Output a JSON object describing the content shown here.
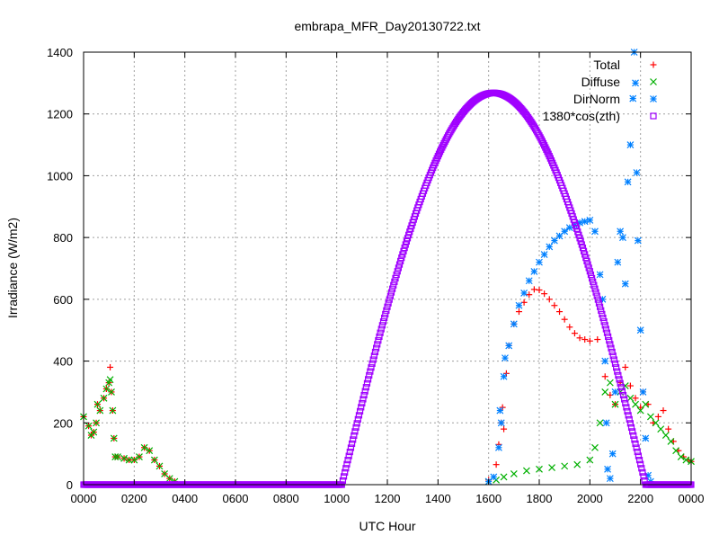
{
  "chart_data": {
    "type": "scatter",
    "title": "embrapa_MFR_Day20130722.txt",
    "xlabel": "UTC Hour",
    "ylabel": "Irradiance (W/m2)",
    "xlim": [
      0,
      24
    ],
    "ylim": [
      0,
      1400
    ],
    "x_ticks": [
      {
        "value": 0,
        "label": "0000"
      },
      {
        "value": 2,
        "label": "0200"
      },
      {
        "value": 4,
        "label": "0400"
      },
      {
        "value": 6,
        "label": "0600"
      },
      {
        "value": 8,
        "label": "0800"
      },
      {
        "value": 10,
        "label": "1000"
      },
      {
        "value": 12,
        "label": "1200"
      },
      {
        "value": 14,
        "label": "1400"
      },
      {
        "value": 16,
        "label": "1600"
      },
      {
        "value": 18,
        "label": "1800"
      },
      {
        "value": 20,
        "label": "2000"
      },
      {
        "value": 22,
        "label": "2200"
      },
      {
        "value": 24,
        "label": "0000"
      }
    ],
    "y_ticks": [
      0,
      200,
      400,
      600,
      800,
      1000,
      1200,
      1400
    ],
    "grid": true,
    "legend_position": "top-right",
    "series": [
      {
        "name": "Total",
        "color": "#ff0000",
        "marker": "plus",
        "points": [
          [
            0.0,
            220
          ],
          [
            0.2,
            190
          ],
          [
            0.3,
            160
          ],
          [
            0.4,
            170
          ],
          [
            0.5,
            200
          ],
          [
            0.55,
            260
          ],
          [
            0.65,
            240
          ],
          [
            0.8,
            280
          ],
          [
            0.9,
            310
          ],
          [
            1.0,
            330
          ],
          [
            1.05,
            380
          ],
          [
            1.1,
            300
          ],
          [
            1.15,
            240
          ],
          [
            1.2,
            150
          ],
          [
            1.25,
            90
          ],
          [
            1.35,
            90
          ],
          [
            1.6,
            85
          ],
          [
            1.8,
            80
          ],
          [
            2.0,
            80
          ],
          [
            2.2,
            90
          ],
          [
            2.4,
            120
          ],
          [
            2.6,
            110
          ],
          [
            2.8,
            80
          ],
          [
            3.0,
            60
          ],
          [
            3.2,
            35
          ],
          [
            3.4,
            20
          ],
          [
            3.6,
            10
          ],
          [
            16.0,
            15
          ],
          [
            16.3,
            65
          ],
          [
            16.4,
            130
          ],
          [
            16.5,
            200
          ],
          [
            16.55,
            250
          ],
          [
            16.6,
            180
          ],
          [
            16.7,
            360
          ],
          [
            16.8,
            450
          ],
          [
            17.0,
            520
          ],
          [
            17.2,
            560
          ],
          [
            17.4,
            590
          ],
          [
            17.6,
            615
          ],
          [
            17.8,
            632
          ],
          [
            18.0,
            630
          ],
          [
            18.2,
            618
          ],
          [
            18.4,
            600
          ],
          [
            18.6,
            580
          ],
          [
            18.8,
            560
          ],
          [
            19.0,
            535
          ],
          [
            19.2,
            510
          ],
          [
            19.4,
            490
          ],
          [
            19.6,
            475
          ],
          [
            19.8,
            470
          ],
          [
            20.0,
            465
          ],
          [
            20.3,
            470
          ],
          [
            20.6,
            350
          ],
          [
            20.8,
            290
          ],
          [
            21.0,
            260
          ],
          [
            21.2,
            330
          ],
          [
            21.4,
            380
          ],
          [
            21.6,
            320
          ],
          [
            21.8,
            280
          ],
          [
            22.0,
            250
          ],
          [
            22.1,
            300
          ],
          [
            22.3,
            260
          ],
          [
            22.5,
            200
          ],
          [
            22.7,
            220
          ],
          [
            22.9,
            240
          ],
          [
            23.1,
            180
          ],
          [
            23.3,
            140
          ],
          [
            23.5,
            110
          ],
          [
            23.7,
            90
          ],
          [
            23.9,
            80
          ],
          [
            24.0,
            75
          ]
        ]
      },
      {
        "name": "Diffuse",
        "color": "#00b000",
        "marker": "cross",
        "points": [
          [
            0.0,
            220
          ],
          [
            0.2,
            190
          ],
          [
            0.3,
            160
          ],
          [
            0.4,
            170
          ],
          [
            0.5,
            200
          ],
          [
            0.55,
            260
          ],
          [
            0.65,
            240
          ],
          [
            0.8,
            280
          ],
          [
            0.9,
            310
          ],
          [
            1.0,
            330
          ],
          [
            1.05,
            340
          ],
          [
            1.1,
            300
          ],
          [
            1.15,
            240
          ],
          [
            1.2,
            150
          ],
          [
            1.25,
            90
          ],
          [
            1.35,
            90
          ],
          [
            1.6,
            85
          ],
          [
            1.8,
            80
          ],
          [
            2.0,
            80
          ],
          [
            2.2,
            90
          ],
          [
            2.4,
            120
          ],
          [
            2.6,
            110
          ],
          [
            2.8,
            80
          ],
          [
            3.0,
            60
          ],
          [
            3.2,
            35
          ],
          [
            3.4,
            20
          ],
          [
            3.6,
            10
          ],
          [
            16.0,
            10
          ],
          [
            16.3,
            15
          ],
          [
            16.6,
            25
          ],
          [
            17.0,
            35
          ],
          [
            17.5,
            45
          ],
          [
            18.0,
            50
          ],
          [
            18.5,
            55
          ],
          [
            19.0,
            60
          ],
          [
            19.5,
            65
          ],
          [
            20.0,
            80
          ],
          [
            20.2,
            120
          ],
          [
            20.4,
            200
          ],
          [
            20.6,
            300
          ],
          [
            20.8,
            330
          ],
          [
            21.0,
            260
          ],
          [
            21.2,
            300
          ],
          [
            21.4,
            320
          ],
          [
            21.6,
            280
          ],
          [
            21.8,
            260
          ],
          [
            22.0,
            240
          ],
          [
            22.2,
            260
          ],
          [
            22.4,
            220
          ],
          [
            22.6,
            200
          ],
          [
            22.8,
            180
          ],
          [
            23.0,
            160
          ],
          [
            23.2,
            140
          ],
          [
            23.4,
            110
          ],
          [
            23.6,
            90
          ],
          [
            23.8,
            80
          ],
          [
            24.0,
            75
          ]
        ]
      },
      {
        "name": "DirNorm",
        "color": "#0080ff",
        "marker": "star",
        "points": [
          [
            16.0,
            10
          ],
          [
            16.2,
            25
          ],
          [
            16.4,
            120
          ],
          [
            16.45,
            240
          ],
          [
            16.5,
            200
          ],
          [
            16.6,
            350
          ],
          [
            16.65,
            410
          ],
          [
            16.8,
            450
          ],
          [
            17.0,
            520
          ],
          [
            17.2,
            580
          ],
          [
            17.4,
            620
          ],
          [
            17.6,
            660
          ],
          [
            17.8,
            690
          ],
          [
            18.0,
            720
          ],
          [
            18.2,
            745
          ],
          [
            18.4,
            770
          ],
          [
            18.6,
            790
          ],
          [
            18.8,
            805
          ],
          [
            19.0,
            820
          ],
          [
            19.2,
            832
          ],
          [
            19.4,
            840
          ],
          [
            19.6,
            848
          ],
          [
            19.8,
            852
          ],
          [
            20.0,
            856
          ],
          [
            20.2,
            820
          ],
          [
            20.4,
            680
          ],
          [
            20.5,
            600
          ],
          [
            20.6,
            400
          ],
          [
            20.65,
            200
          ],
          [
            20.7,
            50
          ],
          [
            20.8,
            20
          ],
          [
            20.9,
            100
          ],
          [
            21.0,
            300
          ],
          [
            21.1,
            720
          ],
          [
            21.2,
            820
          ],
          [
            21.3,
            800
          ],
          [
            21.4,
            650
          ],
          [
            21.5,
            980
          ],
          [
            21.6,
            1100
          ],
          [
            21.7,
            1250
          ],
          [
            21.75,
            1400
          ],
          [
            21.8,
            1300
          ],
          [
            21.85,
            1010
          ],
          [
            21.9,
            790
          ],
          [
            22.0,
            500
          ],
          [
            22.1,
            300
          ],
          [
            22.2,
            150
          ],
          [
            22.3,
            30
          ],
          [
            22.4,
            10
          ]
        ]
      },
      {
        "name": "1380*cos(zth)",
        "color": "#a000ff",
        "marker": "square",
        "shape": "cosine",
        "zero_before": 10.2,
        "peak_x": 16.2,
        "peak_y": 1268,
        "zero_after": 22.2
      }
    ]
  }
}
